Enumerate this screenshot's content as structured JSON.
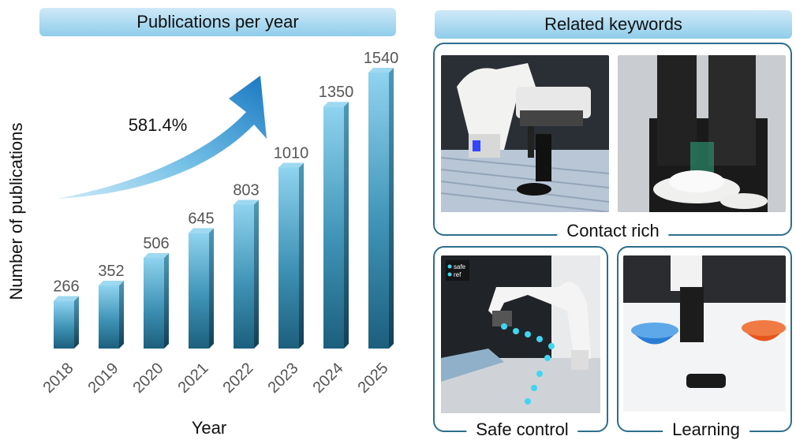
{
  "left_title": "Publications per year",
  "right_title": "Related keywords",
  "chart_data": {
    "type": "bar",
    "categories": [
      "2018",
      "2019",
      "2020",
      "2021",
      "2022",
      "2023",
      "2024",
      "2025"
    ],
    "values": [
      266,
      352,
      506,
      645,
      803,
      1010,
      1350,
      1540
    ],
    "xlabel": "Year",
    "ylabel": "Number of publications",
    "annotation": "581.4%",
    "bar_color": "#1f6f8f",
    "grid": false
  },
  "keywords": {
    "contact": "Contact rich",
    "safe": "Safe control",
    "learning": "Learning"
  },
  "overlay": {
    "safe": "safe",
    "ref": "ref"
  }
}
